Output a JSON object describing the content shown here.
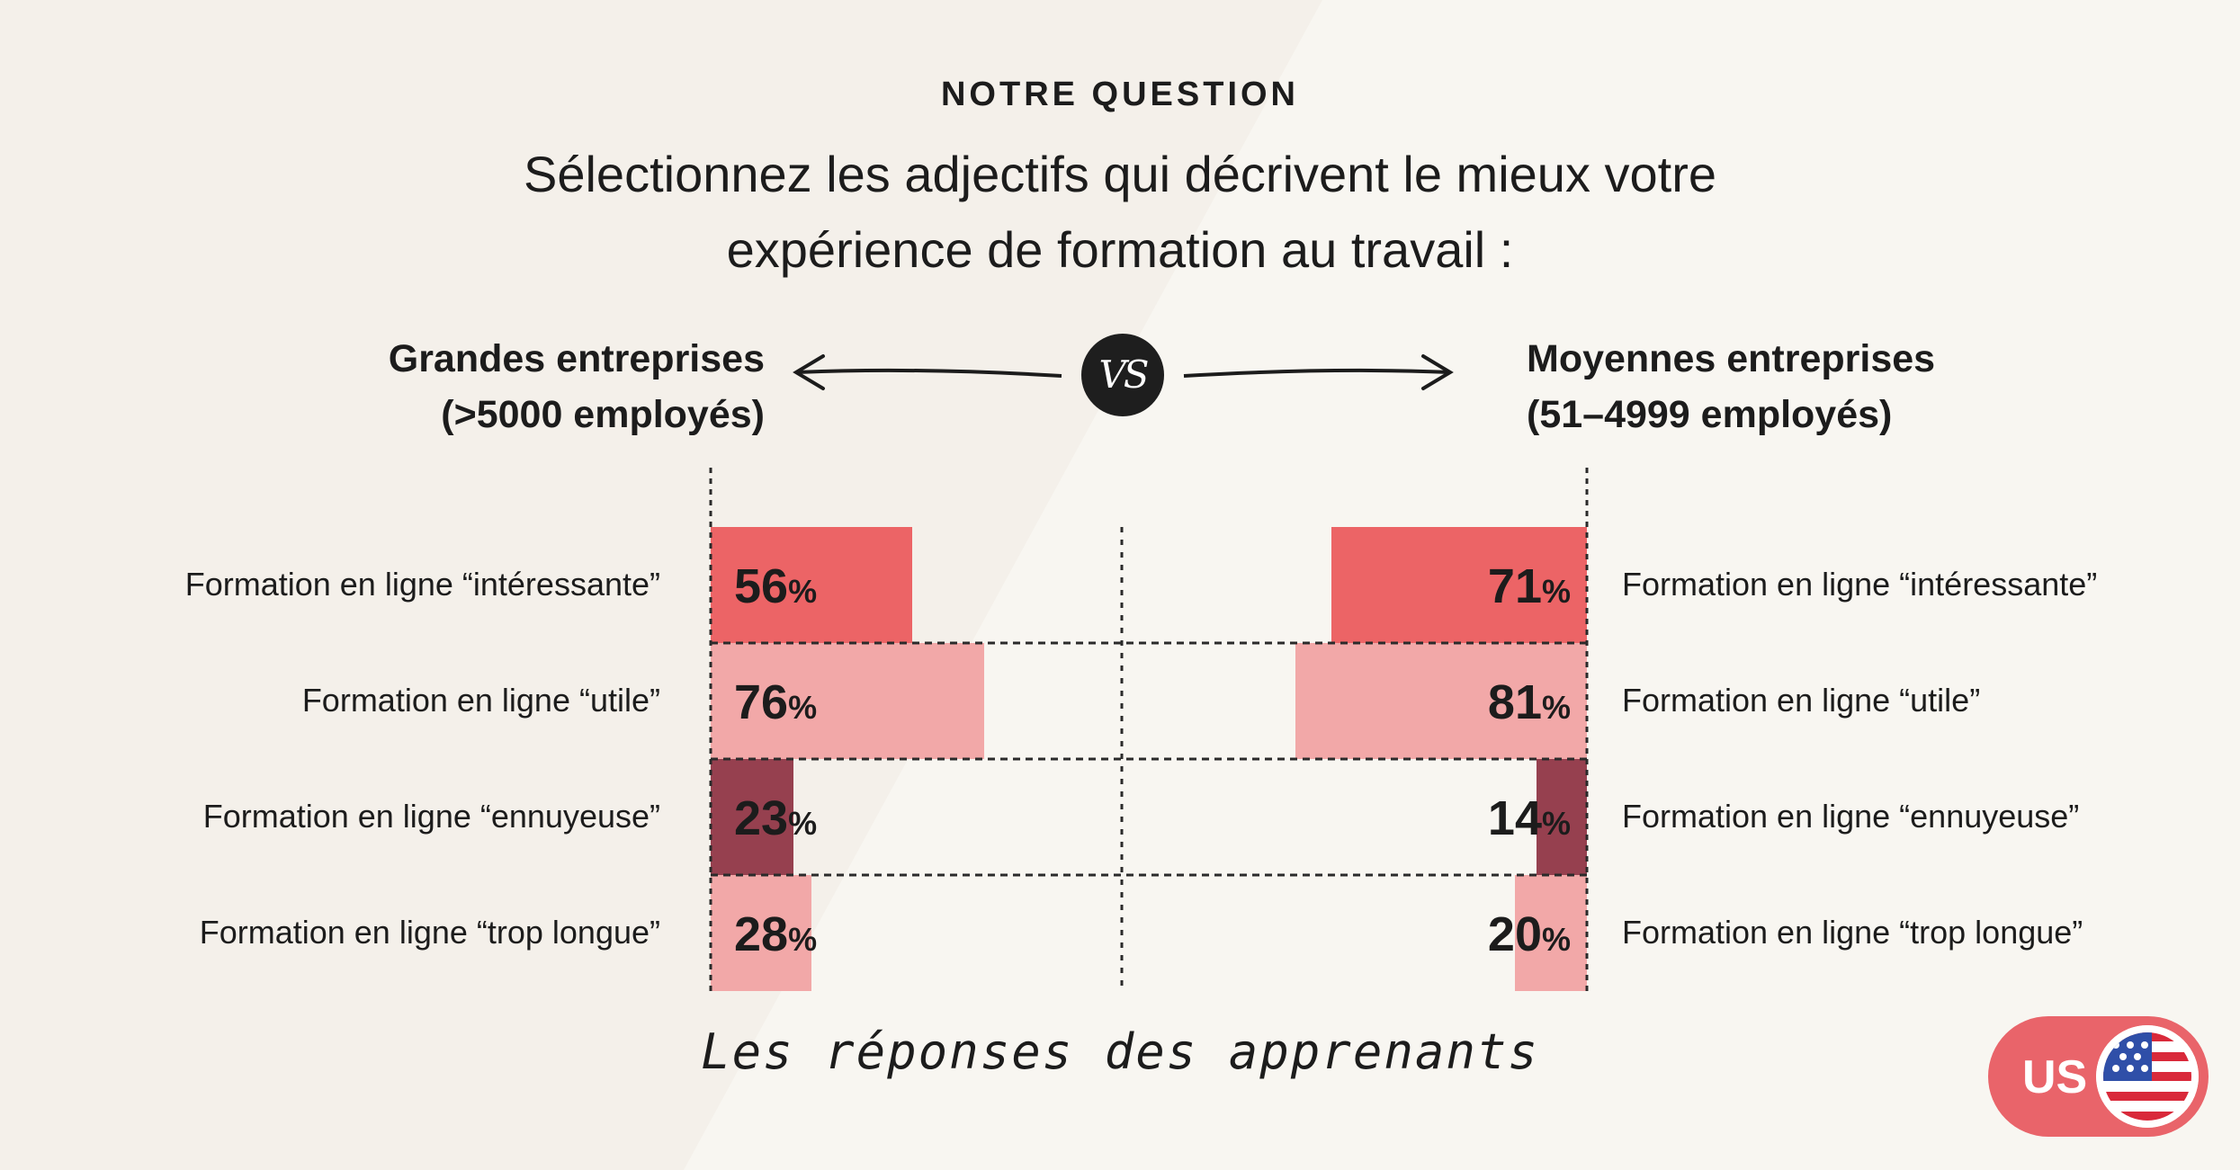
{
  "header": {
    "kicker": "NOTRE QUESTION",
    "question_line1": "Sélectionnez les adjectifs qui décrivent le mieux votre",
    "question_line2": "expérience de formation au travail :"
  },
  "comparison": {
    "left_group_line1": "Grandes entreprises",
    "left_group_line2": "(>5000 employés)",
    "vs_label": "VS",
    "right_group_line1": "Moyennes entreprises",
    "right_group_line2": "(51–4999 employés)"
  },
  "chart_data": {
    "type": "bar",
    "unit": "%",
    "xlim": [
      0,
      100
    ],
    "categories": [
      "Formation en ligne “intéressante”",
      "Formation en ligne “utile”",
      "Formation en ligne “ennuyeuse”",
      "Formation en ligne “trop longue”"
    ],
    "series": [
      {
        "name": "Grandes entreprises (>5000 employés)",
        "values": [
          56,
          76,
          23,
          28
        ]
      },
      {
        "name": "Moyennes entreprises (51–4999 employés)",
        "values": [
          71,
          81,
          14,
          20
        ]
      }
    ],
    "bar_colors": [
      "#ec6466",
      "#f2a8a8",
      "#96404f",
      "#f2a8a8"
    ],
    "xlabel": "Les réponses des apprenants"
  },
  "footer": {
    "note": "Les réponses des apprenants",
    "region_code": "US",
    "region_flag_icon": "us-flag-icon",
    "accent_color": "#e9646a"
  }
}
